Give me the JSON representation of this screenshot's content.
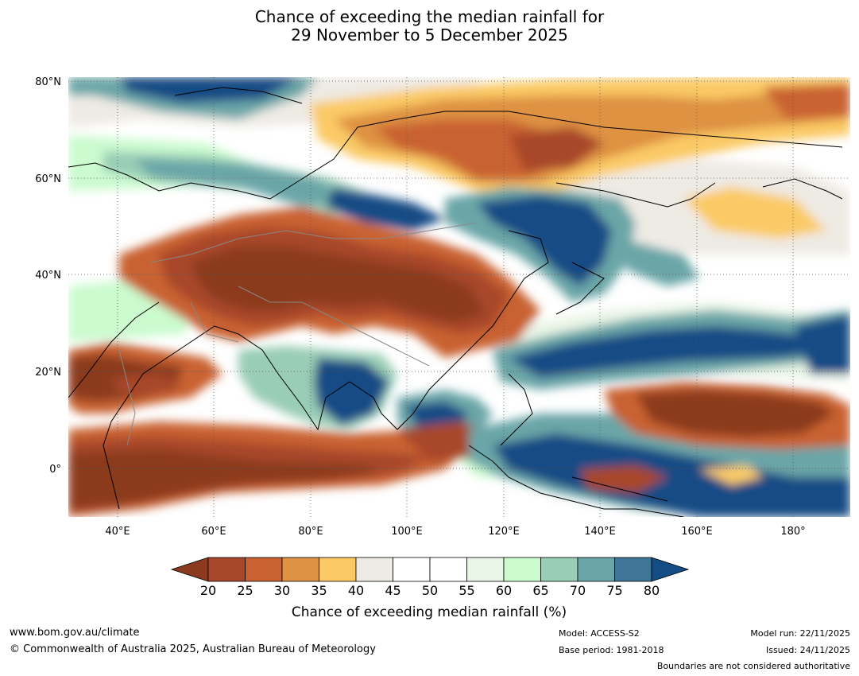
{
  "title": {
    "line1": "Chance of exceeding the median rainfall for",
    "line2": "29 November to 5 December 2025"
  },
  "map": {
    "region": "Asia / Western Pacific",
    "lat_labels": [
      "80°N",
      "60°N",
      "40°N",
      "20°N",
      "0°"
    ],
    "lon_labels": [
      "40°E",
      "60°E",
      "80°E",
      "100°E",
      "120°E",
      "140°E",
      "160°E",
      "180°"
    ],
    "ocean_color": "#ffffff",
    "coastline_color": "#000000",
    "border_color": "#888888",
    "grid_style": "dotted"
  },
  "colorbar": {
    "title": "Chance of exceeding median rainfall (%)",
    "ticks": [
      "20",
      "25",
      "30",
      "35",
      "40",
      "45",
      "50",
      "55",
      "60",
      "65",
      "70",
      "75",
      "80"
    ],
    "colors": [
      "#8b3a1f",
      "#a8472a",
      "#c96230",
      "#de9243",
      "#fbca66",
      "#eeeae4",
      "#ffffff",
      "#ffffff",
      "#e9f5e6",
      "#cbfbcf",
      "#99cdb6",
      "#6aa6a7",
      "#3f7697",
      "#144c85"
    ],
    "extend": "both"
  },
  "footer": {
    "url": "www.bom.gov.au/climate",
    "copyright": "© Commonwealth of Australia 2025, Australian Bureau of Meteorology",
    "model": "Model: ACCESS-S2",
    "base_period": "Base period: 1981-2018",
    "model_run": "Model run: 22/11/2025",
    "issued": "Issued: 24/11/2025",
    "disclaimer": "Boundaries are not considered authoritative"
  }
}
